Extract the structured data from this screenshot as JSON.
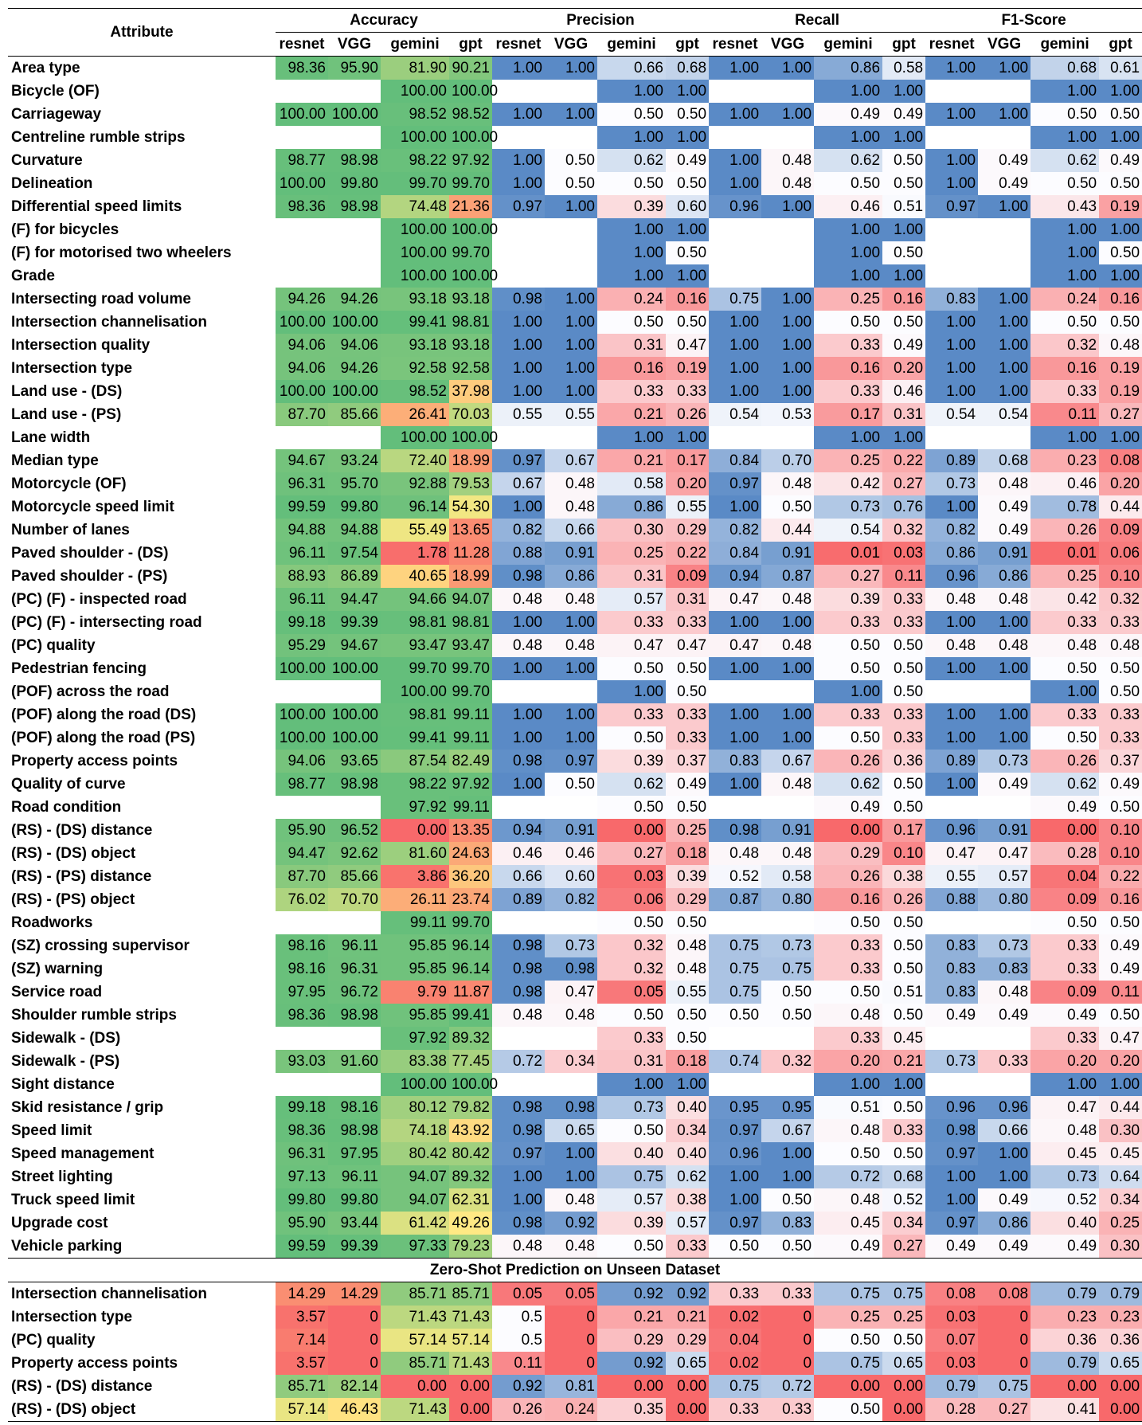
{
  "headers": {
    "attribute": "Attribute",
    "groups": [
      "Accuracy",
      "Precision",
      "Recall",
      "F1-Score"
    ],
    "models": [
      "resnet",
      "VGG",
      "gemini",
      "gpt"
    ]
  },
  "rows": [
    {
      "a": "Area type",
      "v": [
        "98.36",
        "95.90",
        "81.90",
        "90.21",
        "1.00",
        "1.00",
        "0.66",
        "0.68",
        "1.00",
        "1.00",
        "0.86",
        "0.58",
        "1.00",
        "1.00",
        "0.68",
        "0.61"
      ]
    },
    {
      "a": "Bicycle (OF)",
      "v": [
        "",
        "",
        "100.00",
        "100.00",
        "",
        "",
        "1.00",
        "1.00",
        "",
        "",
        "1.00",
        "1.00",
        "",
        "",
        "1.00",
        "1.00"
      ]
    },
    {
      "a": "Carriageway",
      "v": [
        "100.00",
        "100.00",
        "98.52",
        "98.52",
        "1.00",
        "1.00",
        "0.50",
        "0.50",
        "1.00",
        "1.00",
        "0.49",
        "0.49",
        "1.00",
        "1.00",
        "0.50",
        "0.50"
      ]
    },
    {
      "a": "Centreline rumble strips",
      "v": [
        "",
        "",
        "100.00",
        "100.00",
        "",
        "",
        "1.00",
        "1.00",
        "",
        "",
        "1.00",
        "1.00",
        "",
        "",
        "1.00",
        "1.00"
      ]
    },
    {
      "a": "Curvature",
      "v": [
        "98.77",
        "98.98",
        "98.22",
        "97.92",
        "1.00",
        "0.50",
        "0.62",
        "0.49",
        "1.00",
        "0.48",
        "0.62",
        "0.50",
        "1.00",
        "0.49",
        "0.62",
        "0.49"
      ]
    },
    {
      "a": "Delineation",
      "v": [
        "100.00",
        "99.80",
        "99.70",
        "99.70",
        "1.00",
        "0.50",
        "0.50",
        "0.50",
        "1.00",
        "0.48",
        "0.50",
        "0.50",
        "1.00",
        "0.49",
        "0.50",
        "0.50"
      ]
    },
    {
      "a": "Differential speed limits",
      "v": [
        "98.36",
        "98.98",
        "74.48",
        "21.36",
        "0.97",
        "1.00",
        "0.39",
        "0.60",
        "0.96",
        "1.00",
        "0.46",
        "0.51",
        "0.97",
        "1.00",
        "0.43",
        "0.19"
      ]
    },
    {
      "a": "(F) for bicycles",
      "v": [
        "",
        "",
        "100.00",
        "100.00",
        "",
        "",
        "1.00",
        "1.00",
        "",
        "",
        "1.00",
        "1.00",
        "",
        "",
        "1.00",
        "1.00"
      ]
    },
    {
      "a": "(F) for motorised two wheelers",
      "v": [
        "",
        "",
        "100.00",
        "99.70",
        "",
        "",
        "1.00",
        "0.50",
        "",
        "",
        "1.00",
        "0.50",
        "",
        "",
        "1.00",
        "0.50"
      ]
    },
    {
      "a": "Grade",
      "v": [
        "",
        "",
        "100.00",
        "100.00",
        "",
        "",
        "1.00",
        "1.00",
        "",
        "",
        "1.00",
        "1.00",
        "",
        "",
        "1.00",
        "1.00"
      ]
    },
    {
      "a": "Intersecting road volume",
      "v": [
        "94.26",
        "94.26",
        "93.18",
        "93.18",
        "0.98",
        "1.00",
        "0.24",
        "0.16",
        "0.75",
        "1.00",
        "0.25",
        "0.16",
        "0.83",
        "1.00",
        "0.24",
        "0.16"
      ]
    },
    {
      "a": "Intersection channelisation",
      "v": [
        "100.00",
        "100.00",
        "99.41",
        "98.81",
        "1.00",
        "1.00",
        "0.50",
        "0.50",
        "1.00",
        "1.00",
        "0.50",
        "0.50",
        "1.00",
        "1.00",
        "0.50",
        "0.50"
      ]
    },
    {
      "a": "Intersection quality",
      "v": [
        "94.06",
        "94.06",
        "93.18",
        "93.18",
        "1.00",
        "1.00",
        "0.31",
        "0.47",
        "1.00",
        "1.00",
        "0.33",
        "0.49",
        "1.00",
        "1.00",
        "0.32",
        "0.48"
      ]
    },
    {
      "a": "Intersection type",
      "v": [
        "94.06",
        "94.26",
        "92.58",
        "92.58",
        "1.00",
        "1.00",
        "0.16",
        "0.19",
        "1.00",
        "1.00",
        "0.16",
        "0.20",
        "1.00",
        "1.00",
        "0.16",
        "0.19"
      ]
    },
    {
      "a": "Land use - (DS)",
      "v": [
        "100.00",
        "100.00",
        "98.52",
        "37.98",
        "1.00",
        "1.00",
        "0.33",
        "0.33",
        "1.00",
        "1.00",
        "0.33",
        "0.46",
        "1.00",
        "1.00",
        "0.33",
        "0.19"
      ]
    },
    {
      "a": "Land use - (PS)",
      "v": [
        "87.70",
        "85.66",
        "26.41",
        "70.03",
        "0.55",
        "0.55",
        "0.21",
        "0.26",
        "0.54",
        "0.53",
        "0.17",
        "0.31",
        "0.54",
        "0.54",
        "0.11",
        "0.27"
      ]
    },
    {
      "a": "Lane width",
      "v": [
        "",
        "",
        "100.00",
        "100.00",
        "",
        "",
        "1.00",
        "1.00",
        "",
        "",
        "1.00",
        "1.00",
        "",
        "",
        "1.00",
        "1.00"
      ]
    },
    {
      "a": "Median type",
      "v": [
        "94.67",
        "93.24",
        "72.40",
        "18.99",
        "0.97",
        "0.67",
        "0.21",
        "0.17",
        "0.84",
        "0.70",
        "0.25",
        "0.22",
        "0.89",
        "0.68",
        "0.23",
        "0.08"
      ]
    },
    {
      "a": "Motorcycle (OF)",
      "v": [
        "96.31",
        "95.70",
        "92.88",
        "79.53",
        "0.67",
        "0.48",
        "0.58",
        "0.20",
        "0.97",
        "0.48",
        "0.42",
        "0.27",
        "0.73",
        "0.48",
        "0.46",
        "0.20"
      ]
    },
    {
      "a": "Motorcycle speed limit",
      "v": [
        "99.59",
        "99.80",
        "96.14",
        "54.30",
        "1.00",
        "0.48",
        "0.86",
        "0.55",
        "1.00",
        "0.50",
        "0.73",
        "0.76",
        "1.00",
        "0.49",
        "0.78",
        "0.44"
      ]
    },
    {
      "a": "Number of lanes",
      "v": [
        "94.88",
        "94.88",
        "55.49",
        "13.65",
        "0.82",
        "0.66",
        "0.30",
        "0.29",
        "0.82",
        "0.44",
        "0.54",
        "0.32",
        "0.82",
        "0.49",
        "0.26",
        "0.09"
      ]
    },
    {
      "a": "Paved shoulder - (DS)",
      "v": [
        "96.11",
        "97.54",
        "1.78",
        "11.28",
        "0.88",
        "0.91",
        "0.25",
        "0.22",
        "0.84",
        "0.91",
        "0.01",
        "0.03",
        "0.86",
        "0.91",
        "0.01",
        "0.06"
      ]
    },
    {
      "a": "Paved shoulder - (PS)",
      "v": [
        "88.93",
        "86.89",
        "40.65",
        "18.99",
        "0.98",
        "0.86",
        "0.31",
        "0.09",
        "0.94",
        "0.87",
        "0.27",
        "0.11",
        "0.96",
        "0.86",
        "0.25",
        "0.10"
      ]
    },
    {
      "a": "(PC) (F) - inspected road",
      "v": [
        "96.11",
        "94.47",
        "94.66",
        "94.07",
        "0.48",
        "0.48",
        "0.57",
        "0.31",
        "0.47",
        "0.48",
        "0.39",
        "0.33",
        "0.48",
        "0.48",
        "0.42",
        "0.32"
      ]
    },
    {
      "a": "(PC) (F) - intersecting road",
      "v": [
        "99.18",
        "99.39",
        "98.81",
        "98.81",
        "1.00",
        "1.00",
        "0.33",
        "0.33",
        "1.00",
        "1.00",
        "0.33",
        "0.33",
        "1.00",
        "1.00",
        "0.33",
        "0.33"
      ]
    },
    {
      "a": "(PC) quality",
      "v": [
        "95.29",
        "94.67",
        "93.47",
        "93.47",
        "0.48",
        "0.48",
        "0.47",
        "0.47",
        "0.47",
        "0.48",
        "0.50",
        "0.50",
        "0.48",
        "0.48",
        "0.48",
        "0.48"
      ]
    },
    {
      "a": "Pedestrian fencing",
      "v": [
        "100.00",
        "100.00",
        "99.70",
        "99.70",
        "1.00",
        "1.00",
        "0.50",
        "0.50",
        "1.00",
        "1.00",
        "0.50",
        "0.50",
        "1.00",
        "1.00",
        "0.50",
        "0.50"
      ]
    },
    {
      "a": "(POF) across the road",
      "v": [
        "",
        "",
        "100.00",
        "99.70",
        "",
        "",
        "1.00",
        "0.50",
        "",
        "",
        "1.00",
        "0.50",
        "",
        "",
        "1.00",
        "0.50"
      ]
    },
    {
      "a": "(POF) along the road (DS)",
      "v": [
        "100.00",
        "100.00",
        "98.81",
        "99.11",
        "1.00",
        "1.00",
        "0.33",
        "0.33",
        "1.00",
        "1.00",
        "0.33",
        "0.33",
        "1.00",
        "1.00",
        "0.33",
        "0.33"
      ]
    },
    {
      "a": "(POF) along the road (PS)",
      "v": [
        "100.00",
        "100.00",
        "99.41",
        "99.11",
        "1.00",
        "1.00",
        "0.50",
        "0.33",
        "1.00",
        "1.00",
        "0.50",
        "0.33",
        "1.00",
        "1.00",
        "0.50",
        "0.33"
      ]
    },
    {
      "a": "Property access points",
      "v": [
        "94.06",
        "93.65",
        "87.54",
        "82.49",
        "0.98",
        "0.97",
        "0.39",
        "0.37",
        "0.83",
        "0.67",
        "0.26",
        "0.36",
        "0.89",
        "0.73",
        "0.26",
        "0.37"
      ]
    },
    {
      "a": "Quality of curve",
      "v": [
        "98.77",
        "98.98",
        "98.22",
        "97.92",
        "1.00",
        "0.50",
        "0.62",
        "0.49",
        "1.00",
        "0.48",
        "0.62",
        "0.50",
        "1.00",
        "0.49",
        "0.62",
        "0.49"
      ]
    },
    {
      "a": "Road condition",
      "v": [
        "",
        "",
        "97.92",
        "99.11",
        "",
        "",
        "0.50",
        "0.50",
        "",
        "",
        "0.49",
        "0.50",
        "",
        "",
        "0.49",
        "0.50"
      ]
    },
    {
      "a": "(RS) - (DS) distance",
      "v": [
        "95.90",
        "96.52",
        "0.00",
        "13.35",
        "0.94",
        "0.91",
        "0.00",
        "0.25",
        "0.98",
        "0.91",
        "0.00",
        "0.17",
        "0.96",
        "0.91",
        "0.00",
        "0.10"
      ]
    },
    {
      "a": "(RS) - (DS) object",
      "v": [
        "94.47",
        "92.62",
        "81.60",
        "24.63",
        "0.46",
        "0.46",
        "0.27",
        "0.18",
        "0.48",
        "0.48",
        "0.29",
        "0.10",
        "0.47",
        "0.47",
        "0.28",
        "0.10"
      ]
    },
    {
      "a": "(RS) - (PS) distance",
      "v": [
        "87.70",
        "85.66",
        "3.86",
        "36.20",
        "0.66",
        "0.60",
        "0.03",
        "0.39",
        "0.52",
        "0.58",
        "0.26",
        "0.38",
        "0.55",
        "0.57",
        "0.04",
        "0.22"
      ]
    },
    {
      "a": "(RS) - (PS) object",
      "v": [
        "76.02",
        "70.70",
        "26.11",
        "23.74",
        "0.89",
        "0.82",
        "0.06",
        "0.29",
        "0.87",
        "0.80",
        "0.16",
        "0.26",
        "0.88",
        "0.80",
        "0.09",
        "0.16"
      ]
    },
    {
      "a": "Roadworks",
      "v": [
        "",
        "",
        "99.11",
        "99.70",
        "",
        "",
        "0.50",
        "0.50",
        "",
        "",
        "0.50",
        "0.50",
        "",
        "",
        "0.50",
        "0.50"
      ]
    },
    {
      "a": "(SZ) crossing supervisor",
      "v": [
        "98.16",
        "96.11",
        "95.85",
        "96.14",
        "0.98",
        "0.73",
        "0.32",
        "0.48",
        "0.75",
        "0.73",
        "0.33",
        "0.50",
        "0.83",
        "0.73",
        "0.33",
        "0.49"
      ]
    },
    {
      "a": "(SZ) warning",
      "v": [
        "98.16",
        "96.31",
        "95.85",
        "96.14",
        "0.98",
        "0.98",
        "0.32",
        "0.48",
        "0.75",
        "0.75",
        "0.33",
        "0.50",
        "0.83",
        "0.83",
        "0.33",
        "0.49"
      ]
    },
    {
      "a": "Service road",
      "v": [
        "97.95",
        "96.72",
        "9.79",
        "11.87",
        "0.98",
        "0.47",
        "0.05",
        "0.55",
        "0.75",
        "0.50",
        "0.50",
        "0.51",
        "0.83",
        "0.48",
        "0.09",
        "0.11"
      ]
    },
    {
      "a": "Shoulder rumble strips",
      "v": [
        "98.36",
        "98.98",
        "95.85",
        "99.41",
        "0.48",
        "0.48",
        "0.50",
        "0.50",
        "0.50",
        "0.50",
        "0.48",
        "0.50",
        "0.49",
        "0.49",
        "0.49",
        "0.50"
      ]
    },
    {
      "a": "Sidewalk - (DS)",
      "v": [
        "",
        "",
        "97.92",
        "89.32",
        "",
        "",
        "0.33",
        "0.50",
        "",
        "",
        "0.33",
        "0.45",
        "",
        "",
        "0.33",
        "0.47"
      ]
    },
    {
      "a": "Sidewalk - (PS)",
      "v": [
        "93.03",
        "91.60",
        "83.38",
        "77.45",
        "0.72",
        "0.34",
        "0.31",
        "0.18",
        "0.74",
        "0.32",
        "0.20",
        "0.21",
        "0.73",
        "0.33",
        "0.20",
        "0.20"
      ]
    },
    {
      "a": "Sight distance",
      "v": [
        "",
        "",
        "100.00",
        "100.00",
        "",
        "",
        "1.00",
        "1.00",
        "",
        "",
        "1.00",
        "1.00",
        "",
        "",
        "1.00",
        "1.00"
      ]
    },
    {
      "a": "Skid resistance / grip",
      "v": [
        "99.18",
        "98.16",
        "80.12",
        "79.82",
        "0.98",
        "0.98",
        "0.73",
        "0.40",
        "0.95",
        "0.95",
        "0.51",
        "0.50",
        "0.96",
        "0.96",
        "0.47",
        "0.44"
      ]
    },
    {
      "a": "Speed limit",
      "v": [
        "98.36",
        "98.98",
        "74.18",
        "43.92",
        "0.98",
        "0.65",
        "0.50",
        "0.34",
        "0.97",
        "0.67",
        "0.48",
        "0.33",
        "0.98",
        "0.66",
        "0.48",
        "0.30"
      ]
    },
    {
      "a": "Speed management",
      "v": [
        "96.31",
        "97.95",
        "80.42",
        "80.42",
        "0.97",
        "1.00",
        "0.40",
        "0.40",
        "0.96",
        "1.00",
        "0.50",
        "0.50",
        "0.97",
        "1.00",
        "0.45",
        "0.45"
      ]
    },
    {
      "a": "Street lighting",
      "v": [
        "97.13",
        "96.11",
        "94.07",
        "89.32",
        "1.00",
        "1.00",
        "0.75",
        "0.62",
        "1.00",
        "1.00",
        "0.72",
        "0.68",
        "1.00",
        "1.00",
        "0.73",
        "0.64"
      ]
    },
    {
      "a": "Truck speed limit",
      "v": [
        "99.80",
        "99.80",
        "94.07",
        "62.31",
        "1.00",
        "0.48",
        "0.57",
        "0.38",
        "1.00",
        "0.50",
        "0.48",
        "0.52",
        "1.00",
        "0.49",
        "0.52",
        "0.34"
      ]
    },
    {
      "a": "Upgrade cost",
      "v": [
        "95.90",
        "93.44",
        "61.42",
        "49.26",
        "0.98",
        "0.92",
        "0.39",
        "0.57",
        "0.97",
        "0.83",
        "0.45",
        "0.34",
        "0.97",
        "0.86",
        "0.40",
        "0.25"
      ]
    },
    {
      "a": "Vehicle parking",
      "v": [
        "99.59",
        "99.39",
        "97.33",
        "79.23",
        "0.48",
        "0.48",
        "0.50",
        "0.33",
        "0.50",
        "0.50",
        "0.49",
        "0.27",
        "0.49",
        "0.49",
        "0.49",
        "0.30"
      ]
    }
  ],
  "zero_shot_title": "Zero-Shot Prediction on Unseen Dataset",
  "zero_shot_rows": [
    {
      "a": "Intersection channelisation",
      "v": [
        "14.29",
        "14.29",
        "85.71",
        "85.71",
        "0.05",
        "0.05",
        "0.92",
        "0.92",
        "0.33",
        "0.33",
        "0.75",
        "0.75",
        "0.08",
        "0.08",
        "0.79",
        "0.79"
      ]
    },
    {
      "a": "Intersection type",
      "v": [
        "3.57",
        "0",
        "71.43",
        "71.43",
        "0.5",
        "0",
        "0.21",
        "0.21",
        "0.02",
        "0",
        "0.25",
        "0.25",
        "0.03",
        "0",
        "0.23",
        "0.23"
      ]
    },
    {
      "a": "(PC) quality",
      "v": [
        "7.14",
        "0",
        "57.14",
        "57.14",
        "0.5",
        "0",
        "0.29",
        "0.29",
        "0.04",
        "0",
        "0.50",
        "0.50",
        "0.07",
        "0",
        "0.36",
        "0.36"
      ]
    },
    {
      "a": "Property access points",
      "v": [
        "3.57",
        "0",
        "85.71",
        "71.43",
        "0.11",
        "0",
        "0.92",
        "0.65",
        "0.02",
        "0",
        "0.75",
        "0.65",
        "0.03",
        "0",
        "0.79",
        "0.65"
      ]
    },
    {
      "a": "(RS) - (DS) distance",
      "v": [
        "85.71",
        "82.14",
        "0.00",
        "0.00",
        "0.92",
        "0.81",
        "0.00",
        "0.00",
        "0.75",
        "0.72",
        "0.00",
        "0.00",
        "0.79",
        "0.75",
        "0.00",
        "0.00"
      ]
    },
    {
      "a": "(RS) - (DS) object",
      "v": [
        "57.14",
        "46.43",
        "71.43",
        "0.00",
        "0.26",
        "0.24",
        "0.35",
        "0.00",
        "0.33",
        "0.33",
        "0.50",
        "0.00",
        "0.28",
        "0.27",
        "0.41",
        "0.00"
      ]
    }
  ]
}
